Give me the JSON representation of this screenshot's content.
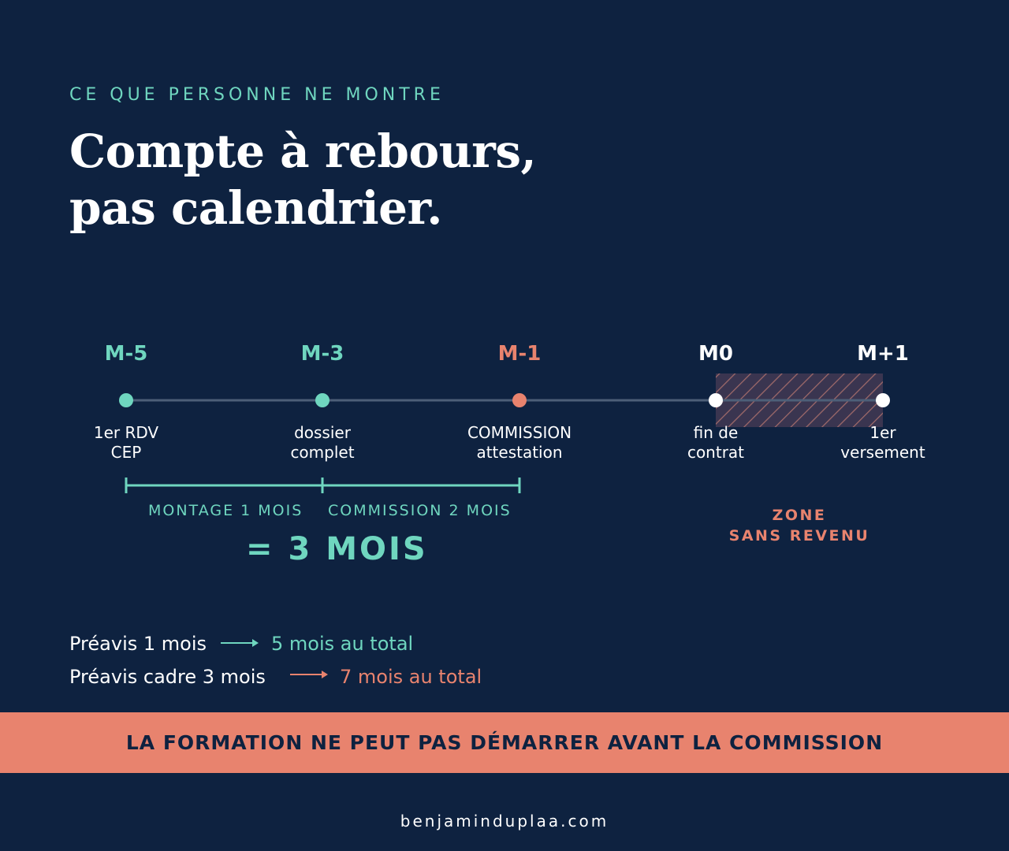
{
  "header": {
    "eyebrow": "CE QUE PERSONNE NE MONTRE",
    "title_line1": "Compte à rebours,",
    "title_line2": "pas calendrier."
  },
  "timeline": {
    "milestones": [
      {
        "label": "M-5",
        "caption": [
          "1er RDV",
          "CEP"
        ],
        "color": "#6fd6bf"
      },
      {
        "label": "M-3",
        "caption": [
          "dossier",
          "complet"
        ],
        "color": "#6fd6bf"
      },
      {
        "label": "M-1",
        "caption": [
          "COMMISSION",
          "attestation"
        ],
        "color": "#e8836e"
      },
      {
        "label": "M0",
        "caption": [
          "fin de",
          "contrat"
        ],
        "color": "#ffffff"
      },
      {
        "label": "M+1",
        "caption": [
          "1er",
          "versement"
        ],
        "color": "#ffffff"
      }
    ],
    "spans": [
      {
        "label": "MONTAGE 1 MOIS",
        "months": 1
      },
      {
        "label": "COMMISSION 2 MOIS",
        "months": 2
      }
    ],
    "total": "= 3 MOIS",
    "zone": [
      "ZONE",
      "SANS REVENU"
    ]
  },
  "notes": [
    {
      "label": "Préavis 1 mois",
      "result": "5 mois au total",
      "color": "#6fd6bf"
    },
    {
      "label": "Préavis cadre 3 mois",
      "result": "7 mois au total",
      "color": "#e8836e"
    }
  ],
  "banner": "LA FORMATION NE PEUT PAS DÉMARRER AVANT LA COMMISSION",
  "footer": "benjaminduplaa.com",
  "colors": {
    "background": "#0e2240",
    "teal": "#6fd6bf",
    "coral": "#e8836e",
    "white": "#ffffff"
  }
}
